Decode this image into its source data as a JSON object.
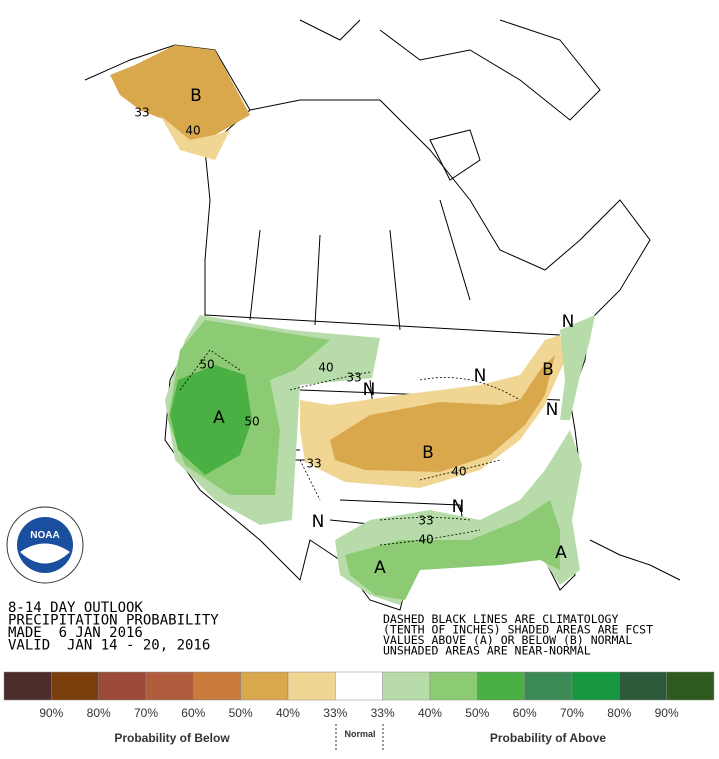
{
  "outlook": {
    "lines": [
      "8-14 DAY OUTLOOK",
      "PRECIPITATION PROBABILITY",
      "MADE  6 JAN 2016",
      "VALID  JAN 14 - 20, 2016"
    ]
  },
  "notes": [
    "DASHED BLACK LINES ARE CLIMATOLOGY",
    "(TENTH OF INCHES) SHADED AREAS ARE FCST",
    "VALUES ABOVE (A) OR BELOW (B) NORMAL",
    "UNSHADED AREAS ARE NEAR-NORMAL"
  ],
  "logo": "NOAA",
  "map_labels": [
    "B",
    "40",
    "33",
    "50",
    "A",
    "50",
    "40",
    "33",
    "N",
    "B",
    "N",
    "N",
    "B",
    "33",
    "40",
    "N",
    "N",
    "33",
    "40",
    "A",
    "A",
    "N"
  ],
  "legend": {
    "colors": [
      "#4d2c2c",
      "#7a3d0c",
      "#9b4a38",
      "#b25c3e",
      "#c97b3b",
      "#d9a84c",
      "#f1d593",
      "#ffffff",
      "#b7dcaa",
      "#8ccb73",
      "#4bb043",
      "#3b8a55",
      "#17973f",
      "#2b5a3a",
      "#2f5a1d"
    ],
    "labels": [
      "90%",
      "80%",
      "70%",
      "60%",
      "50%",
      "40%",
      "33%",
      "33%",
      "40%",
      "50%",
      "60%",
      "70%",
      "80%",
      "90%"
    ],
    "below_title": "Probability of Below",
    "normal_title": "Normal",
    "above_title": "Probability of Above"
  }
}
